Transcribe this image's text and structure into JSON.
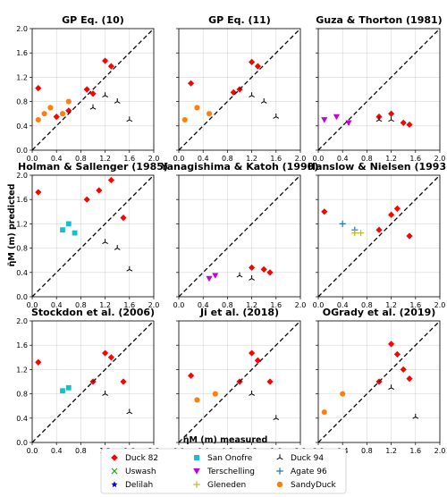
{
  "figure": {
    "xlabel": "η̄M (m) measured",
    "ylabel": "η̄M (m) predicted"
  },
  "legend": {
    "entries": [
      {
        "label": "Duck 82",
        "color": "#ff0000",
        "marker": "diamond"
      },
      {
        "label": "San Onofre",
        "color": "#17becf",
        "marker": "square"
      },
      {
        "label": "Duck 94",
        "color": "#000000",
        "marker": "tri"
      },
      {
        "label": "Uswash",
        "color": "#2ca02c",
        "marker": "x"
      },
      {
        "label": "Terschelling",
        "color": "#c700d9",
        "marker": "triangle-down"
      },
      {
        "label": "Agate 96",
        "color": "#1f77b4",
        "marker": "plus"
      },
      {
        "label": "Delilah",
        "color": "#0000ff",
        "marker": "star"
      },
      {
        "label": "Gleneden",
        "color": "#bcbd22",
        "marker": "plus"
      },
      {
        "label": "SandyDuck",
        "color": "#ff7f0e",
        "marker": "circle"
      }
    ]
  },
  "chart_data": [
    {
      "type": "scatter",
      "title": "GP Eq. (10)",
      "xlim": [
        0,
        2
      ],
      "ylim": [
        0,
        2
      ],
      "xticks": [
        "0.0",
        "0.4",
        "0.8",
        "1.2",
        "1.6",
        "2.0"
      ],
      "yticks": [
        "0.0",
        "0.4",
        "0.8",
        "1.2",
        "1.6",
        "2.0"
      ],
      "grid": true,
      "reference_line": "y = x",
      "series": [
        {
          "name": "Duck 82",
          "points": [
            [
              0.1,
              1.02
            ],
            [
              1.2,
              1.47
            ],
            [
              1.3,
              1.38
            ],
            [
              0.9,
              1.0
            ],
            [
              1.0,
              0.93
            ],
            [
              0.4,
              0.55
            ],
            [
              0.6,
              0.65
            ]
          ]
        },
        {
          "name": "Duck 94",
          "points": [
            [
              1.2,
              0.9
            ],
            [
              1.4,
              0.8
            ],
            [
              1.6,
              0.5
            ],
            [
              1.0,
              0.7
            ]
          ]
        },
        {
          "name": "SandyDuck",
          "points": [
            [
              0.1,
              0.5
            ],
            [
              0.2,
              0.6
            ],
            [
              0.3,
              0.7
            ],
            [
              0.5,
              0.6
            ],
            [
              0.6,
              0.8
            ]
          ]
        }
      ]
    },
    {
      "type": "scatter",
      "title": "GP Eq. (11)",
      "xlim": [
        0,
        2
      ],
      "ylim": [
        0,
        2
      ],
      "xticks": [
        "0.0",
        "0.4",
        "0.8",
        "1.2",
        "1.6",
        "2.0"
      ],
      "yticks": [],
      "grid": true,
      "reference_line": "y = x",
      "series": [
        {
          "name": "Duck 82",
          "points": [
            [
              0.2,
              1.1
            ],
            [
              1.2,
              1.45
            ],
            [
              1.3,
              1.38
            ],
            [
              1.0,
              1.0
            ],
            [
              0.9,
              0.95
            ]
          ]
        },
        {
          "name": "Duck 94",
          "points": [
            [
              1.2,
              0.9
            ],
            [
              1.4,
              0.8
            ],
            [
              1.6,
              0.55
            ]
          ]
        },
        {
          "name": "SandyDuck",
          "points": [
            [
              0.1,
              0.5
            ],
            [
              0.3,
              0.7
            ],
            [
              0.5,
              0.6
            ]
          ]
        }
      ]
    },
    {
      "type": "scatter",
      "title": "Guza & Thorton (1981)",
      "xlim": [
        0,
        2
      ],
      "ylim": [
        0,
        2
      ],
      "xticks": [
        "0.0",
        "0.4",
        "0.8",
        "1.2",
        "1.6",
        "2.0"
      ],
      "yticks": [],
      "grid": true,
      "reference_line": "y = x",
      "series": [
        {
          "name": "Duck 82",
          "points": [
            [
              1.2,
              0.6
            ],
            [
              1.4,
              0.45
            ],
            [
              1.5,
              0.42
            ],
            [
              1.0,
              0.55
            ]
          ]
        },
        {
          "name": "Terschelling",
          "points": [
            [
              0.1,
              0.5
            ],
            [
              0.3,
              0.55
            ],
            [
              0.5,
              0.45
            ]
          ]
        },
        {
          "name": "Duck 94",
          "points": [
            [
              1.0,
              0.5
            ],
            [
              1.2,
              0.5
            ]
          ]
        }
      ]
    },
    {
      "type": "scatter",
      "title": "Holman & Sallenger (1985)",
      "xlim": [
        0,
        2
      ],
      "ylim": [
        0,
        2
      ],
      "xticks": [
        "0.0",
        "0.4",
        "0.8",
        "1.2",
        "1.6",
        "2.0"
      ],
      "yticks": [
        "0.0",
        "0.4",
        "0.8",
        "1.2",
        "1.6",
        "2.0"
      ],
      "grid": true,
      "reference_line": "y = x",
      "series": [
        {
          "name": "Duck 82",
          "points": [
            [
              0.1,
              1.72
            ],
            [
              1.3,
              1.92
            ],
            [
              1.1,
              1.75
            ],
            [
              1.5,
              1.3
            ],
            [
              0.9,
              1.6
            ]
          ]
        },
        {
          "name": "San Onofre",
          "points": [
            [
              0.5,
              1.1
            ],
            [
              0.6,
              1.2
            ],
            [
              0.7,
              1.05
            ]
          ]
        },
        {
          "name": "Duck 94",
          "points": [
            [
              1.2,
              0.9
            ],
            [
              1.6,
              0.45
            ],
            [
              1.4,
              0.8
            ]
          ]
        }
      ]
    },
    {
      "type": "scatter",
      "title": "Yanagishima & Katoh (1990)",
      "xlim": [
        0,
        2
      ],
      "ylim": [
        0,
        2
      ],
      "xticks": [
        "0.0",
        "0.4",
        "0.8",
        "1.2",
        "1.6",
        "2.0"
      ],
      "yticks": [],
      "grid": true,
      "reference_line": "y = x",
      "series": [
        {
          "name": "Duck 82",
          "points": [
            [
              1.2,
              0.48
            ],
            [
              1.4,
              0.45
            ],
            [
              1.5,
              0.4
            ]
          ]
        },
        {
          "name": "Terschelling",
          "points": [
            [
              0.5,
              0.3
            ],
            [
              0.6,
              0.35
            ]
          ]
        },
        {
          "name": "Duck 94",
          "points": [
            [
              1.0,
              0.35
            ],
            [
              1.2,
              0.3
            ]
          ]
        }
      ]
    },
    {
      "type": "scatter",
      "title": "Hanslow & Nielsen (1993)",
      "xlim": [
        0,
        2
      ],
      "ylim": [
        0,
        2
      ],
      "xticks": [
        "0.0",
        "0.4",
        "0.8",
        "1.2",
        "1.6",
        "2.0"
      ],
      "yticks": [],
      "grid": true,
      "reference_line": "y = x",
      "series": [
        {
          "name": "Duck 82",
          "points": [
            [
              0.1,
              1.4
            ],
            [
              1.3,
              1.45
            ],
            [
              1.2,
              1.35
            ],
            [
              1.5,
              1.0
            ],
            [
              1.0,
              1.1
            ]
          ]
        },
        {
          "name": "Agate 96",
          "points": [
            [
              0.4,
              1.2
            ],
            [
              0.6,
              1.1
            ]
          ]
        },
        {
          "name": "Gleneden",
          "points": [
            [
              0.6,
              1.05
            ],
            [
              0.7,
              1.05
            ]
          ]
        }
      ]
    },
    {
      "type": "scatter",
      "title": "Stockdon et al. (2006)",
      "xlim": [
        0,
        2
      ],
      "ylim": [
        0,
        2
      ],
      "xticks": [
        "0.0",
        "0.4",
        "0.8",
        "1.2",
        "1.6",
        "2.0"
      ],
      "yticks": [
        "0.0",
        "0.4",
        "0.8",
        "1.2",
        "1.6",
        "2.0"
      ],
      "grid": true,
      "reference_line": "y = x",
      "series": [
        {
          "name": "Duck 82",
          "points": [
            [
              0.1,
              1.32
            ],
            [
              1.2,
              1.47
            ],
            [
              1.3,
              1.4
            ],
            [
              1.0,
              1.0
            ],
            [
              1.5,
              1.0
            ]
          ]
        },
        {
          "name": "San Onofre",
          "points": [
            [
              0.5,
              0.85
            ],
            [
              0.6,
              0.9
            ]
          ]
        },
        {
          "name": "Duck 94",
          "points": [
            [
              1.2,
              0.8
            ],
            [
              1.6,
              0.5
            ]
          ]
        }
      ]
    },
    {
      "type": "scatter",
      "title": "Ji et al. (2018)",
      "xlim": [
        0,
        2
      ],
      "ylim": [
        0,
        2
      ],
      "xticks": [
        "0.0",
        "0.4",
        "0.8",
        "1.2",
        "1.6",
        "2.0"
      ],
      "yticks": [],
      "grid": true,
      "reference_line": "y = x",
      "series": [
        {
          "name": "Duck 82",
          "points": [
            [
              0.2,
              1.1
            ],
            [
              1.2,
              1.47
            ],
            [
              1.3,
              1.35
            ],
            [
              1.0,
              1.0
            ],
            [
              1.5,
              1.0
            ]
          ]
        },
        {
          "name": "Duck 94",
          "points": [
            [
              1.2,
              0.8
            ],
            [
              1.6,
              0.4
            ]
          ]
        },
        {
          "name": "SandyDuck",
          "points": [
            [
              0.3,
              0.7
            ],
            [
              0.6,
              0.8
            ]
          ]
        }
      ]
    },
    {
      "type": "scatter",
      "title": "OGrady et al. (2019)",
      "xlim": [
        0,
        2
      ],
      "ylim": [
        0,
        2
      ],
      "xticks": [
        "0.0",
        "0.4",
        "0.8",
        "1.2",
        "1.6",
        "2.0"
      ],
      "yticks": [],
      "grid": true,
      "reference_line": "y = x",
      "series": [
        {
          "name": "Duck 82",
          "points": [
            [
              1.2,
              1.62
            ],
            [
              1.3,
              1.45
            ],
            [
              1.4,
              1.2
            ],
            [
              1.5,
              1.05
            ],
            [
              1.0,
              1.0
            ]
          ]
        },
        {
          "name": "Duck 94",
          "points": [
            [
              1.2,
              0.9
            ],
            [
              1.6,
              0.42
            ]
          ]
        },
        {
          "name": "SandyDuck",
          "points": [
            [
              0.1,
              0.5
            ],
            [
              0.4,
              0.8
            ]
          ]
        }
      ]
    }
  ]
}
